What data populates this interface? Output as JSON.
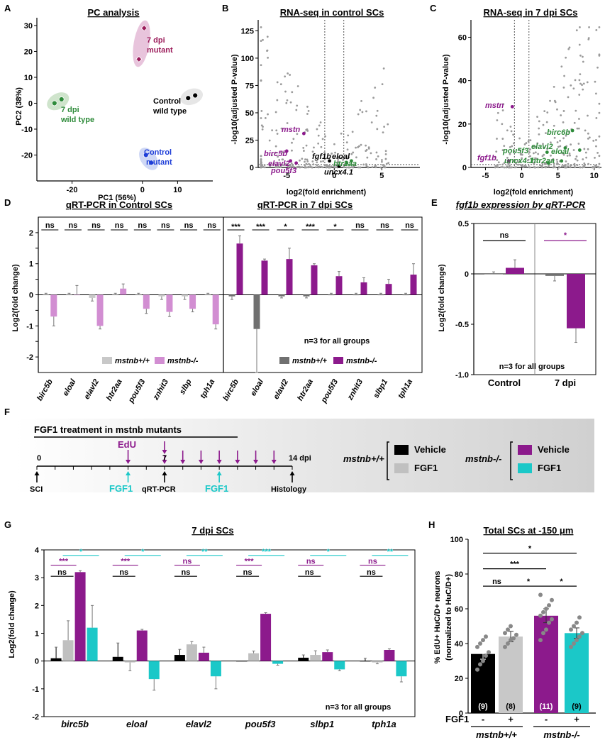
{
  "panels": {
    "A": {
      "letter": "A",
      "title": "PC analysis",
      "xlabel": "PC1 (56%)",
      "ylabel": "PC2 (38%)",
      "groups": [
        {
          "label1": "7 dpi",
          "label2": "mutant",
          "color": "#9b1b5a"
        },
        {
          "label1": "7 dpi",
          "label2": "wild type",
          "color": "#2e8b3a"
        },
        {
          "label1": "Control",
          "label2": "wild type",
          "color": "#000000"
        },
        {
          "label1": "Control",
          "label2": "mutant",
          "color": "#1f3fd8"
        }
      ]
    },
    "B": {
      "letter": "B",
      "title": "RNA-seq in control SCs",
      "ylabel": "-log10(adjusted P-value)",
      "xlabel": "log2(fold enrichment)",
      "genes": [
        "mstn",
        "birc5b",
        "elavl2",
        "pou5f3",
        "fgf1b",
        "eloal",
        "htr2aa",
        "uncx4.1"
      ]
    },
    "C": {
      "letter": "C",
      "title": "RNA-seq in 7 dpi SCs",
      "ylabel": "-log10(adjusted P-value)",
      "xlabel": "log2(fold enrichment)",
      "genes": [
        "mstn",
        "fgf1b",
        "birc6b",
        "elavl2",
        "pou5f3",
        "eloal",
        "uncx4.1",
        "htr2aa"
      ]
    },
    "D": {
      "letter": "D",
      "title_left": "qRT-PCR in Control SCs",
      "title_right": "qRT-PCR in 7 dpi SCs",
      "ylabel": "Log2(fold change)",
      "note": "n=3  for all groups",
      "legend_left": [
        "mstnb+/+",
        "mstnb-/-"
      ],
      "legend_right": [
        "mstnb+/+",
        "mstnb-/-"
      ],
      "sig_left": [
        "ns",
        "ns",
        "ns",
        "ns",
        "ns",
        "ns",
        "ns",
        "ns"
      ],
      "sig_right": [
        "***",
        "***",
        "*",
        "***",
        "*",
        "ns",
        "ns",
        "ns"
      ]
    },
    "E": {
      "letter": "E",
      "title": "fgf1b expression by qRT-PCR",
      "ylabel": "Log2(fold change)",
      "note": "n=3  for all groups",
      "sig": [
        "ns",
        "*"
      ]
    },
    "F": {
      "letter": "F",
      "title": "FGF1 treatment in mstnb mutants",
      "day0": "0",
      "day7": "7",
      "day14": "14 dpi",
      "edu": "EdU",
      "fgf1": "FGF1",
      "sci": "SCI",
      "qrt": "qRT-PCR",
      "histology": "Histology",
      "genotype_wt": "mstnb+/+",
      "genotype_mut": "mstnb-/-",
      "legend": [
        {
          "label": "Vehicle",
          "color": "#000000"
        },
        {
          "label": "FGF1",
          "color": "#c0c0c0"
        },
        {
          "label": "Vehicle",
          "color": "#8c1a8c"
        },
        {
          "label": "FGF1",
          "color": "#1bc8c8"
        }
      ]
    },
    "G": {
      "letter": "G",
      "title": "7 dpi SCs",
      "ylabel": "Log2(fold change)",
      "note": "n=3  for all groups",
      "sig_cyan": [
        "*",
        "*",
        "**",
        "***",
        "*",
        "**"
      ],
      "sig_purple": [
        "***",
        "***",
        "ns",
        "***",
        "ns",
        "ns"
      ],
      "sig_black": [
        "ns",
        "ns",
        "ns",
        "ns",
        "ns",
        "ns"
      ]
    },
    "H": {
      "letter": "H",
      "title": "Total SCs at -150 μm",
      "ylabel1": "% EdU+ HuC/D+ neurons",
      "ylabel2": "(normalized to HuC/D+)",
      "fgf_label": "FGF1",
      "signs": [
        "-",
        "+",
        "-",
        "+"
      ],
      "genotypes": [
        "mstnb+/+",
        "mstnb-/-"
      ],
      "counts": [
        "(9)",
        "(8)",
        "(11)",
        "(9)"
      ],
      "sig": [
        "*",
        "***",
        "ns",
        "*",
        "*"
      ]
    }
  },
  "colors": {
    "black": "#000000",
    "grey": "#c8c8c8",
    "purple": "#8c1a8c",
    "cyan": "#1bc8c8",
    "lightpurple": "#d28ed2",
    "darkgrey": "#707070"
  },
  "chart_data": [
    {
      "type": "scatter",
      "panel": "A",
      "title": "PC analysis",
      "xlabel": "PC1 (56%)",
      "ylabel": "PC2 (38%)",
      "xlim": [
        -30,
        20
      ],
      "ylim": [
        -30,
        33
      ],
      "series": [
        {
          "name": "7 dpi mutant",
          "points": [
            [
              0.5,
              29
            ],
            [
              -1,
              17
            ]
          ]
        },
        {
          "name": "7 dpi wild type",
          "points": [
            [
              -25,
              0
            ],
            [
              -23,
              1.5
            ]
          ]
        },
        {
          "name": "Control wild type",
          "points": [
            [
              13,
              2
            ],
            [
              15,
              3
            ]
          ]
        },
        {
          "name": "Control mutant",
          "points": [
            [
              1,
              -20
            ],
            [
              2.5,
              -23
            ]
          ]
        }
      ]
    },
    {
      "type": "bar",
      "panel": "D-left",
      "title": "qRT-PCR in Control SCs",
      "ylabel": "Log2(fold change)",
      "ylim": [
        -2.5,
        2.5
      ],
      "categories": [
        "birc5b",
        "eloal",
        "elavl2",
        "htr2aa",
        "pou5f3",
        "znhit3",
        "slbp",
        "tph1a"
      ],
      "series": [
        {
          "name": "mstnb+/+",
          "values": [
            0.0,
            0.0,
            -0.1,
            0.0,
            0.0,
            -0.05,
            -0.05,
            0.0
          ],
          "errors": [
            0.05,
            0.05,
            0.1,
            0.05,
            0.05,
            0.1,
            0.1,
            0.05
          ]
        },
        {
          "name": "mstnb-/-",
          "values": [
            -0.7,
            0.0,
            -1.0,
            0.2,
            -0.45,
            -0.55,
            -0.45,
            -0.95
          ],
          "errors": [
            0.3,
            0.3,
            0.1,
            0.15,
            0.15,
            0.15,
            0.1,
            0.15
          ]
        }
      ]
    },
    {
      "type": "bar",
      "panel": "D-right",
      "title": "qRT-PCR in 7 dpi SCs",
      "ylabel": "Log2(fold change)",
      "ylim": [
        -2.5,
        2.5
      ],
      "categories": [
        "birc5b",
        "eloal",
        "elavl2",
        "htr2aa",
        "pou5f3",
        "znhit3",
        "slbp1",
        "tph1a"
      ],
      "series": [
        {
          "name": "mstnb+/+",
          "values": [
            -0.05,
            -1.1,
            -0.05,
            -0.05,
            0.0,
            0.0,
            0.0,
            0.0
          ],
          "errors": [
            0.1,
            1.4,
            0.05,
            0.05,
            0.05,
            0.05,
            0.05,
            0.05
          ]
        },
        {
          "name": "mstnb-/-",
          "values": [
            1.65,
            1.1,
            1.15,
            0.95,
            0.6,
            0.4,
            0.35,
            0.65
          ],
          "errors": [
            0.25,
            0.05,
            0.35,
            0.05,
            0.15,
            0.15,
            0.15,
            0.35
          ]
        }
      ]
    },
    {
      "type": "bar",
      "panel": "E",
      "title": "fgf1b expression by qRT-PCR",
      "ylabel": "Log2(fold change)",
      "ylim": [
        -1.0,
        0.5
      ],
      "categories": [
        "Control",
        "7 dpi"
      ],
      "series": [
        {
          "name": "mstnb+/+",
          "values": [
            0.0,
            -0.02
          ],
          "errors": [
            0.02,
            0.05
          ]
        },
        {
          "name": "mstnb-/-",
          "values": [
            0.06,
            -0.54
          ],
          "errors": [
            0.08,
            0.14
          ]
        }
      ]
    },
    {
      "type": "bar",
      "panel": "G",
      "title": "7 dpi SCs",
      "ylabel": "Log2(fold change)",
      "ylim": [
        -2,
        4
      ],
      "categories": [
        "birc5b",
        "eloal",
        "elavl2",
        "pou5f3",
        "slbp1",
        "tph1a"
      ],
      "series": [
        {
          "name": "mstnb+/+ Vehicle",
          "values": [
            0.1,
            0.15,
            0.22,
            0.0,
            0.12,
            0.0
          ],
          "errors": [
            0.4,
            0.5,
            0.2,
            0.0,
            0.1,
            0.1
          ]
        },
        {
          "name": "mstnb+/+ FGF1",
          "values": [
            0.75,
            -0.05,
            0.6,
            0.28,
            0.22,
            -0.05
          ],
          "errors": [
            0.7,
            0.3,
            0.1,
            0.08,
            0.15,
            0.05
          ]
        },
        {
          "name": "mstnb-/- Vehicle",
          "values": [
            3.2,
            1.1,
            0.3,
            1.7,
            0.32,
            0.4
          ],
          "errors": [
            0.05,
            0.04,
            0.2,
            0.04,
            0.08,
            0.04
          ]
        },
        {
          "name": "mstnb-/- FGF1",
          "values": [
            1.2,
            -0.65,
            -0.55,
            -0.1,
            -0.3,
            -0.55
          ],
          "errors": [
            0.8,
            0.4,
            0.45,
            0.05,
            0.05,
            0.2
          ]
        }
      ]
    },
    {
      "type": "bar",
      "panel": "H",
      "title": "Total SCs at -150 μm",
      "ylim": [
        0,
        100
      ],
      "categories": [
        "mstnb+/+ -FGF1",
        "mstnb+/+ +FGF1",
        "mstnb-/- -FGF1",
        "mstnb-/- +FGF1"
      ],
      "values": [
        34,
        44,
        56,
        46
      ],
      "errors": [
        3,
        3,
        4,
        3
      ],
      "n": [
        9,
        8,
        11,
        9
      ],
      "points": [
        [
          25,
          28,
          30,
          33,
          35,
          38,
          40,
          42,
          44
        ],
        [
          38,
          40,
          42,
          43,
          45,
          46,
          48,
          50
        ],
        [
          42,
          46,
          48,
          52,
          54,
          56,
          58,
          60,
          62,
          65,
          68
        ],
        [
          38,
          40,
          42,
          44,
          46,
          48,
          50,
          52,
          55
        ]
      ]
    }
  ]
}
